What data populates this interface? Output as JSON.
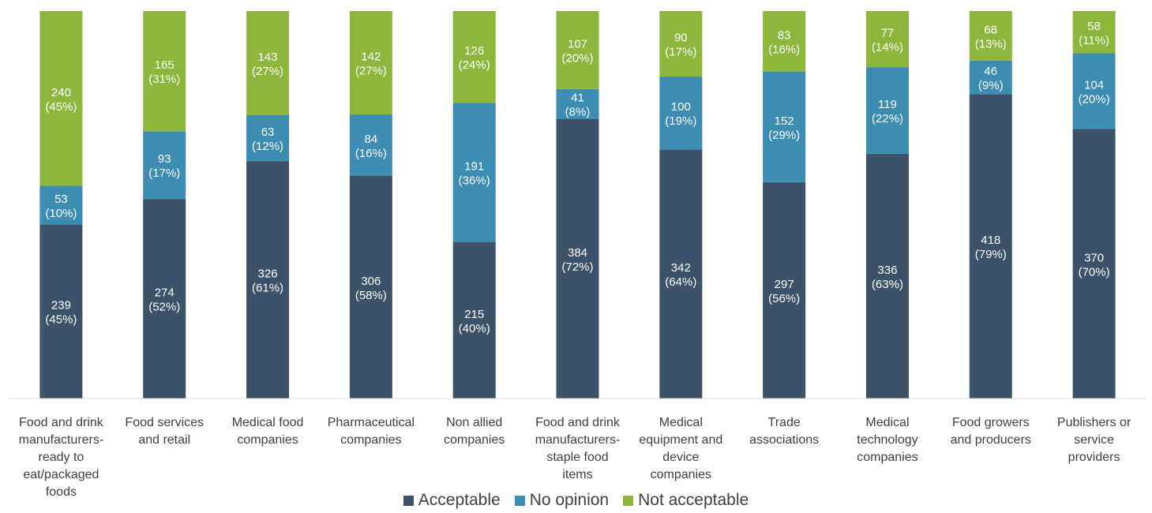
{
  "chart_data": {
    "type": "bar",
    "stacked": true,
    "categories": [
      [
        "Food and drink",
        "manufacturers-",
        "ready to",
        "eat/packaged",
        "foods"
      ],
      [
        "Food services",
        "and retail"
      ],
      [
        "Medical food",
        "companies"
      ],
      [
        "Pharmaceutical",
        "companies"
      ],
      [
        "Non allied",
        "companies"
      ],
      [
        "Food and drink",
        "manufacturers-",
        "staple food",
        "items"
      ],
      [
        "Medical",
        "equipment and",
        "device",
        "companies"
      ],
      [
        "Trade",
        "associations"
      ],
      [
        "Medical",
        "technology",
        "companies"
      ],
      [
        "Food growers",
        "and producers"
      ],
      [
        "Publishers or",
        "service",
        "providers"
      ]
    ],
    "series": [
      {
        "name": "Acceptable",
        "color": "#3b5269",
        "values": [
          239,
          274,
          326,
          306,
          215,
          384,
          342,
          297,
          336,
          418,
          370
        ],
        "pct": [
          "(45%)",
          "(52%)",
          "(61%)",
          "(58%)",
          "(40%)",
          "(72%)",
          "(64%)",
          "(56%)",
          "(63%)",
          "(79%)",
          "(70%)"
        ]
      },
      {
        "name": "No opinion",
        "color": "#3d8db3",
        "values": [
          53,
          93,
          63,
          84,
          191,
          41,
          100,
          152,
          119,
          46,
          104
        ],
        "pct": [
          "(10%)",
          "(17%)",
          "(12%)",
          "(16%)",
          "(36%)",
          "(8%)",
          "(19%)",
          "(29%)",
          "(22%)",
          "(9%)",
          "(20%)"
        ]
      },
      {
        "name": "Not acceptable",
        "color": "#8db63c",
        "values": [
          240,
          165,
          143,
          142,
          126,
          107,
          90,
          83,
          77,
          68,
          58
        ],
        "pct": [
          "(45%)",
          "(31%)",
          "(27%)",
          "(27%)",
          "(24%)",
          "(20%)",
          "(17%)",
          "(16%)",
          "(14%)",
          "(13%)",
          "(11%)"
        ]
      }
    ],
    "legend_position": "bottom",
    "grid": false
  }
}
